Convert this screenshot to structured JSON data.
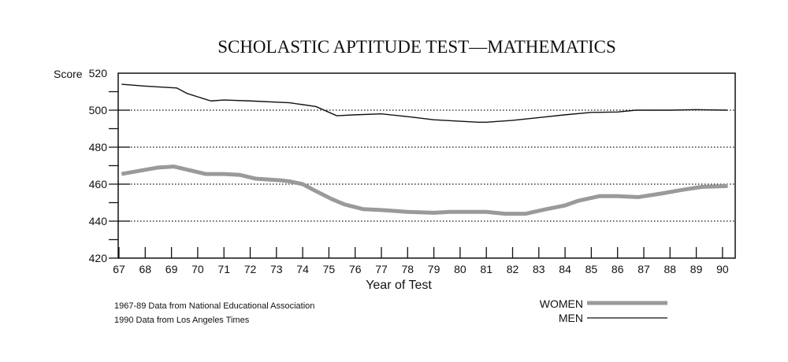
{
  "chart_data": {
    "type": "line",
    "title": "SCHOLASTIC APTITUDE TEST—MATHEMATICS",
    "xlabel": "Year of Test",
    "ylabel": "Score",
    "xlim": [
      67,
      90
    ],
    "ylim": [
      420,
      520
    ],
    "x_ticks": [
      "67",
      "68",
      "69",
      "70",
      "71",
      "72",
      "73",
      "74",
      "75",
      "76",
      "77",
      "78",
      "79",
      "80",
      "81",
      "82",
      "83",
      "84",
      "85",
      "86",
      "87",
      "88",
      "89",
      "90"
    ],
    "y_ticks": [
      "520",
      "500",
      "480",
      "460",
      "440",
      "420"
    ],
    "grid": "dotted horizontal at 500, 480, 460, 440",
    "legend_position": "bottom-right",
    "series": [
      {
        "name": "WOMEN",
        "color": "#9a9a9a",
        "x": [
          67.1,
          68.5,
          69.1,
          70.3,
          71,
          71.6,
          72.2,
          73.2,
          73.5,
          74,
          74.4,
          75.1,
          75.6,
          76.3,
          77,
          78,
          79,
          79.6,
          80.5,
          81,
          81.7,
          82.5,
          83.3,
          84,
          84.5,
          85.3,
          86,
          86.8,
          87.7,
          88.5,
          89.2,
          90.2
        ],
        "values": [
          465.5,
          469,
          469.5,
          465.5,
          465.5,
          465,
          463,
          462,
          461.5,
          460,
          457,
          452,
          449,
          446.5,
          446,
          445,
          444.5,
          445,
          445,
          445,
          444,
          444,
          446.5,
          448.5,
          451,
          453.5,
          453.5,
          453,
          455,
          457,
          458.5,
          459
        ]
      },
      {
        "name": "MEN",
        "color": "#111111",
        "x": [
          67.1,
          68,
          69.2,
          69.6,
          70.5,
          71,
          72,
          73.5,
          74.5,
          75.3,
          76,
          77,
          78,
          79,
          80,
          80.7,
          81,
          82,
          83,
          84,
          85,
          86,
          86.7,
          87,
          88,
          89,
          90.2
        ],
        "values": [
          514,
          513,
          512,
          509,
          505,
          505.5,
          505,
          504,
          502,
          497,
          497.5,
          498,
          496.5,
          494.8,
          494,
          493.5,
          493.5,
          494.5,
          496,
          497.5,
          498.8,
          499,
          500,
          500,
          500,
          500.3,
          500
        ]
      }
    ],
    "notes": [
      "1967-89 Data from National Educational Association",
      "1990 Data from Los Angeles Times"
    ]
  }
}
